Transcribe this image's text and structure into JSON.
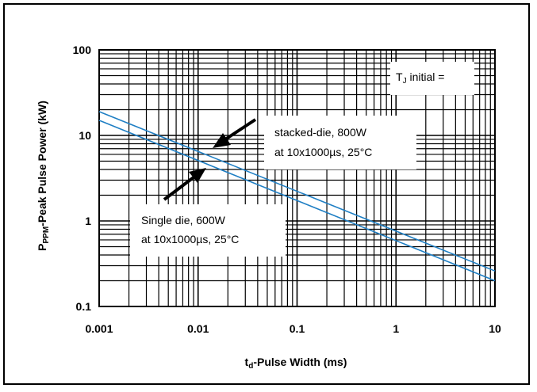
{
  "chart_data": {
    "type": "line",
    "x_scale": "log",
    "y_scale": "log",
    "xlim": [
      0.001,
      10
    ],
    "ylim": [
      0.1,
      100
    ],
    "grid": true,
    "x_ticks": [
      "0.001",
      "0.01",
      "0.1",
      "1",
      "10"
    ],
    "y_ticks": [
      "100",
      "10",
      "1",
      "0.1"
    ],
    "xlabel": {
      "main": "t",
      "sub": "d",
      "rest": "-Pulse Width (ms)"
    },
    "ylabel": {
      "main": "P",
      "sub": "PPM",
      "rest": "-Peak Pulse Power (kW)"
    },
    "series": [
      {
        "x": [
          0.001,
          10
        ],
        "y": [
          19,
          0.26
        ],
        "color": "#1f7fc4"
      },
      {
        "x": [
          0.001,
          10
        ],
        "y": [
          15,
          0.2
        ],
        "color": "#1f7fc4"
      }
    ],
    "annotations": {
      "tj_main": "T",
      "tj_sub": "J",
      "tj_rest": " initial =",
      "stacked_line1": "stacked-die, 800W",
      "stacked_line2": "at 10x1000µs, 25°C",
      "single_line1": "Single die, 600W",
      "single_line2": "at 10x1000µs, 25°C"
    }
  }
}
